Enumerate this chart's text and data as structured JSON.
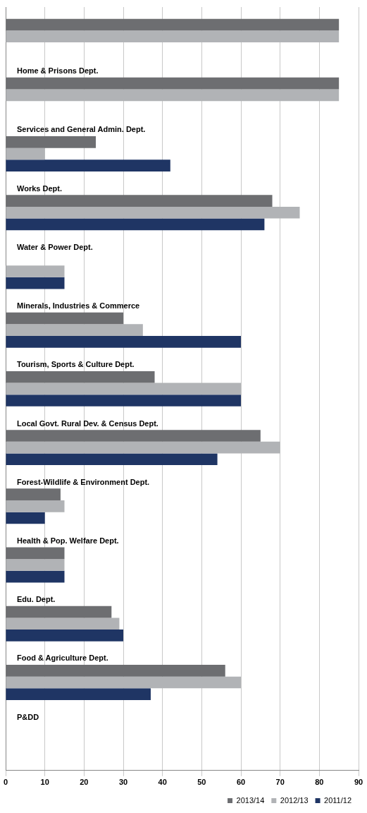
{
  "chart_data": {
    "type": "bar",
    "orientation": "horizontal",
    "categories": [
      null,
      "Home & Prisons Dept.",
      "Services and General Admin. Dept.",
      "Works Dept.",
      "Water & Power Dept.",
      "Minerals, Industries & Commerce",
      "Tourism, Sports & Culture Dept.",
      "Local Govt. Rural Dev. & Census Dept.",
      "Forest-Wildlife & Environment Dept.",
      "Health & Pop. Welfare Dept.",
      "Edu. Dept.",
      "Food & Agriculture Dept.",
      "P&DD"
    ],
    "series": [
      {
        "name": "2013/14",
        "color": "#6d6e71",
        "values": [
          85,
          85,
          23,
          68,
          null,
          30,
          38,
          65,
          14,
          15,
          27,
          56,
          null
        ]
      },
      {
        "name": "2012/13",
        "color": "#b1b3b6",
        "values": [
          85,
          85,
          10,
          75,
          15,
          35,
          60,
          70,
          15,
          15,
          29,
          60,
          null
        ]
      },
      {
        "name": "2011/12",
        "color": "#1f3564",
        "values": [
          null,
          null,
          42,
          66,
          15,
          60,
          60,
          54,
          10,
          15,
          30,
          37,
          null
        ]
      }
    ],
    "xlim": [
      0,
      90
    ],
    "xticks": [
      0,
      10,
      20,
      30,
      40,
      50,
      60,
      70,
      80,
      90
    ],
    "grid": "x",
    "legend": "bottom right"
  }
}
